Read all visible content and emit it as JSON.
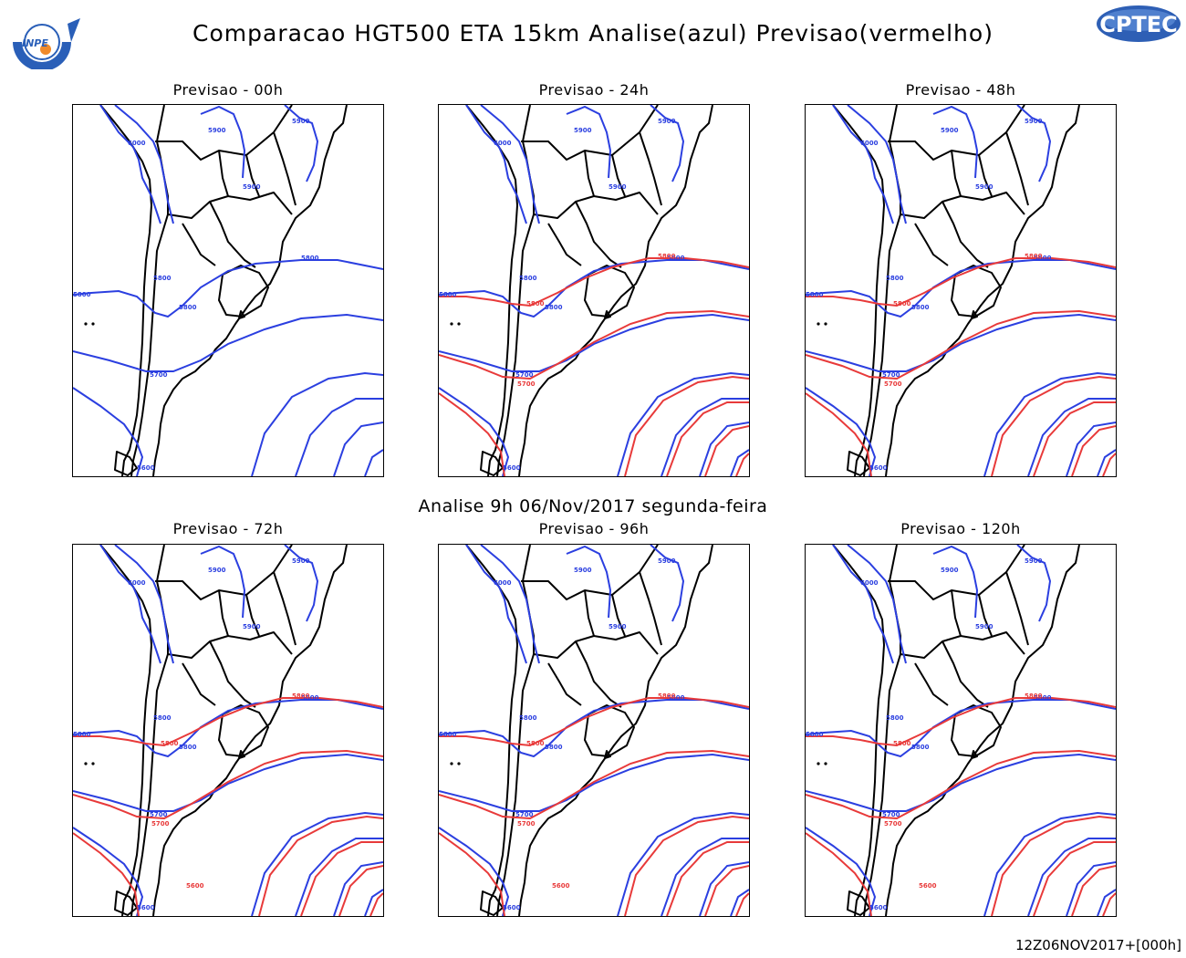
{
  "header": {
    "title": "Comparacao HGT500 ETA 15km Analise(azul) Previsao(vermelho)",
    "analysis_label": "Analise 9h 06/Nov/2017 segunda-feira",
    "footer": "12Z06NOV2017+[000h]"
  },
  "logos": {
    "left_text": "INPE",
    "right_text": "CPTEC"
  },
  "colors": {
    "analysis": "#2b3fe0",
    "forecast": "#e83a3a",
    "land_borders": "#000000"
  },
  "contour_labels": [
    "5600",
    "5700",
    "5800",
    "5900",
    "6000"
  ],
  "panels": [
    {
      "title": "Previsao - 00h",
      "forecast": false,
      "labels": {
        "l6000": "6000",
        "l5900a": "5900",
        "l5900b": "5900",
        "l5900c": "5900",
        "l5800a": "5800",
        "l5800b": "5800",
        "l5800c": "5800",
        "l5800d": "5800",
        "l5700": "5700",
        "l5600": "5600"
      }
    },
    {
      "title": "Previsao - 24h",
      "forecast": true,
      "labels": {
        "l6000": "6000",
        "l5900a": "5900",
        "l5900b": "5900",
        "l5900c": "5900",
        "l5800a": "5800",
        "l5800b": "5800",
        "l5800c": "5800",
        "l5800d": "5800",
        "l5700": "5700",
        "l5600": "5600",
        "r5800": "5800",
        "r5800b": "5800",
        "r5700": "5700"
      }
    },
    {
      "title": "Previsao - 48h",
      "forecast": true,
      "labels": {
        "l6000": "6000",
        "l5900a": "5900",
        "l5900b": "5900",
        "l5900c": "5900",
        "l5800a": "5800",
        "l5800b": "5800",
        "l5800c": "5800",
        "l5800d": "5800",
        "l5700": "5700",
        "l5600": "5600",
        "r5800": "5800",
        "r5800b": "5800",
        "r5700": "5700"
      }
    },
    {
      "title": "Previsao - 72h",
      "forecast": true,
      "labels": {
        "l6000": "6000",
        "l5900a": "5900",
        "l5900b": "5900",
        "l5900c": "5900",
        "l5800a": "5800",
        "l5800b": "5800",
        "l5800c": "5800",
        "l5800d": "5800",
        "l5700": "5700",
        "l5600": "5600",
        "r5800": "5800",
        "r5800b": "5800",
        "r5700": "5700",
        "r5600": "5600"
      }
    },
    {
      "title": "Previsao - 96h",
      "forecast": true,
      "labels": {
        "l6000": "6000",
        "l5900a": "5900",
        "l5900b": "5900",
        "l5900c": "5900",
        "l5800a": "5800",
        "l5800b": "5800",
        "l5800c": "5800",
        "l5800d": "5800",
        "l5700": "5700",
        "l5600": "5600",
        "r5800": "5800",
        "r5800b": "5800",
        "r5700": "5700",
        "r5600": "5600"
      }
    },
    {
      "title": "Previsao - 120h",
      "forecast": true,
      "labels": {
        "l6000": "6000",
        "l5900a": "5900",
        "l5900b": "5900",
        "l5900c": "5900",
        "l5800a": "5800",
        "l5800b": "5800",
        "l5800c": "5800",
        "l5800d": "5800",
        "l5700": "5700",
        "l5600": "5600",
        "r5800": "5800",
        "r5800b": "5800",
        "r5700": "5700",
        "r5600": "5600"
      }
    }
  ]
}
